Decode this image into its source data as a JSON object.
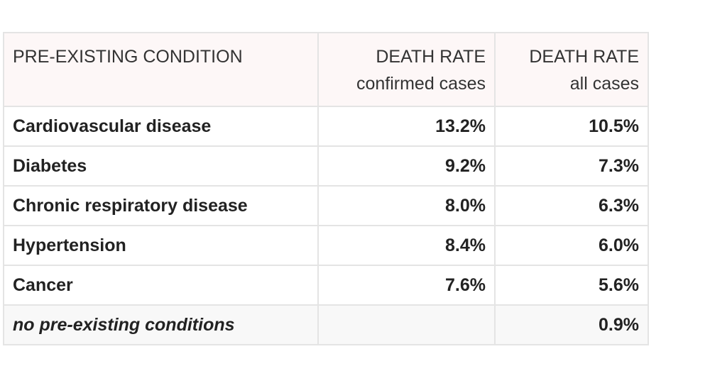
{
  "header": {
    "col1": "PRE-EXISTING CONDITION",
    "col2_line1": "DEATH RATE",
    "col2_line2": "confirmed cases",
    "col3_line1": "DEATH RATE",
    "col3_line2": "all cases"
  },
  "rows": [
    {
      "condition": "Cardiovascular disease",
      "confirmed": "13.2%",
      "all": "10.5%"
    },
    {
      "condition": "Diabetes",
      "confirmed": "9.2%",
      "all": "7.3%"
    },
    {
      "condition": "Chronic respiratory disease",
      "confirmed": "8.0%",
      "all": "6.3%"
    },
    {
      "condition": "Hypertension",
      "confirmed": "8.4%",
      "all": "6.0%"
    },
    {
      "condition": "Cancer",
      "confirmed": "7.6%",
      "all": "5.6%"
    },
    {
      "condition": "no pre-existing conditions",
      "confirmed": "",
      "all": "0.9%"
    }
  ]
}
